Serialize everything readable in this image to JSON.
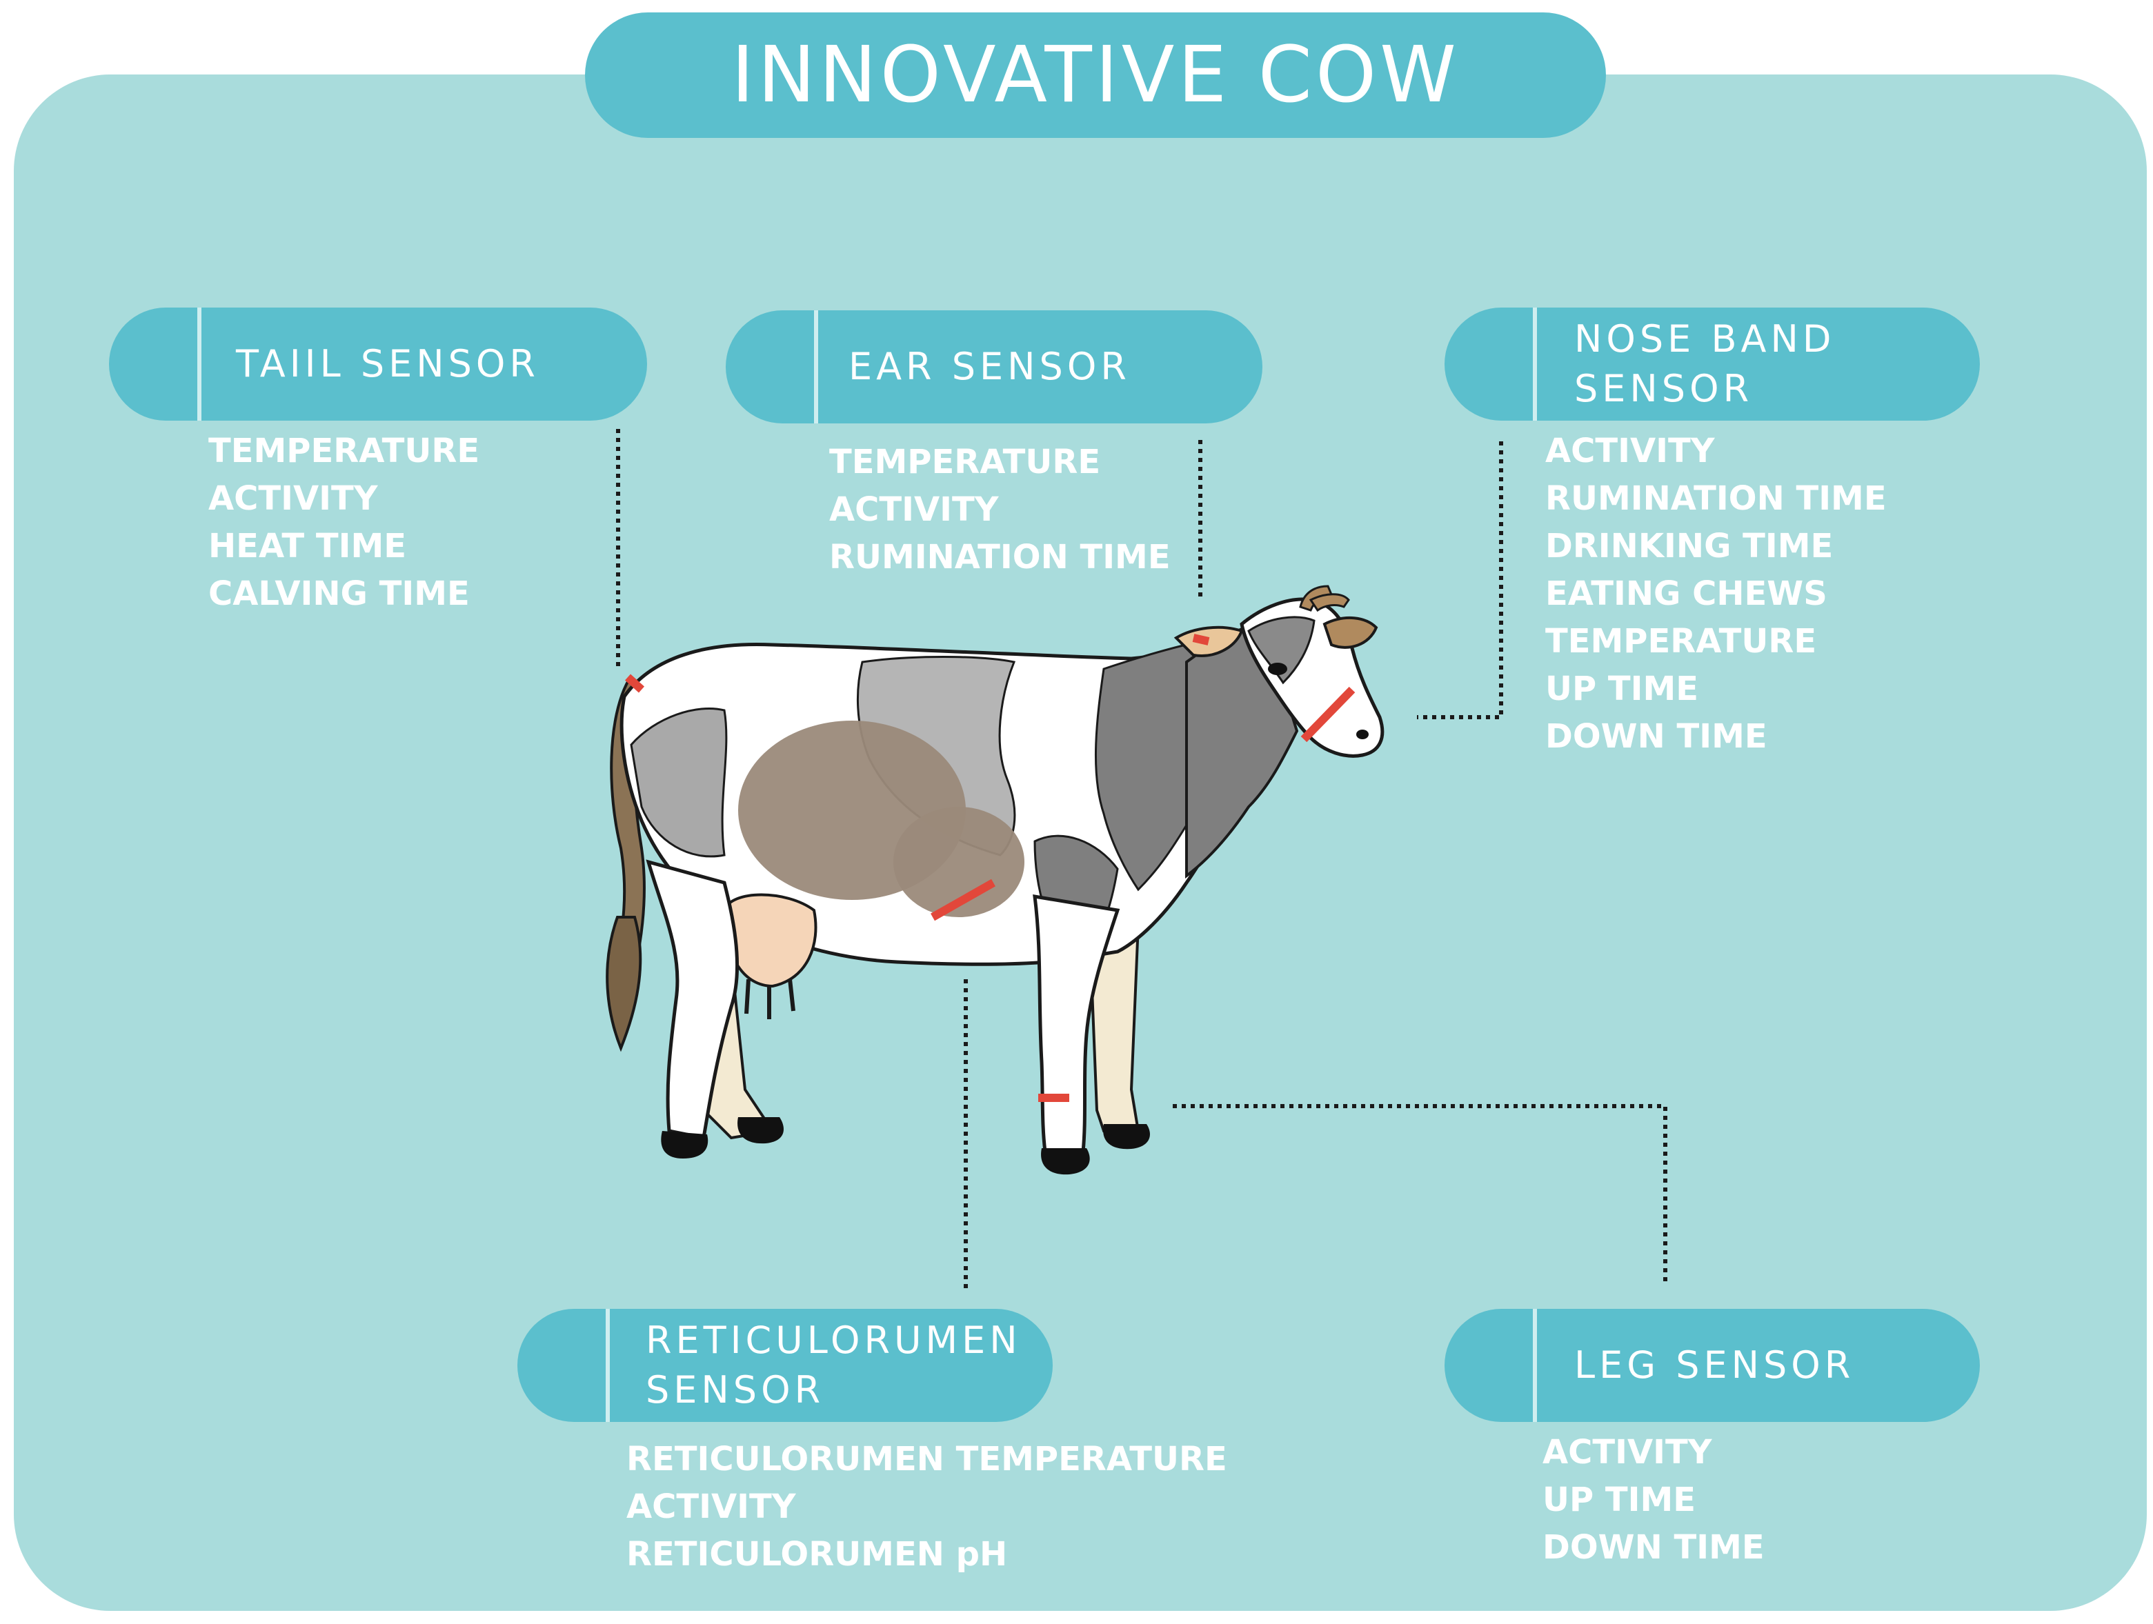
{
  "title": "INNOVATIVE COW",
  "colors": {
    "background": "#a9dcdc",
    "pill": "#5bbfcd",
    "text": "#ffffff",
    "sensor_marker": "#e2473a",
    "connector": "#1a1a1a"
  },
  "sensors": {
    "tail": {
      "label_lines": [
        "TAIIL SENSOR"
      ],
      "items": [
        "TEMPERATURE",
        "ACTIVITY",
        "HEAT TIME",
        "CALVING TIME"
      ]
    },
    "ear": {
      "label_lines": [
        "EAR SENSOR"
      ],
      "items": [
        "TEMPERATURE",
        "ACTIVITY",
        "RUMINATION TIME"
      ]
    },
    "nose": {
      "label_lines": [
        "NOSE BAND",
        "SENSOR"
      ],
      "items": [
        "ACTIVITY",
        "RUMINATION TIME",
        "DRINKING TIME",
        "EATING CHEWS",
        "TEMPERATURE",
        "UP TIME",
        "DOWN TIME"
      ]
    },
    "reticulorumen": {
      "label_lines": [
        "RETICULORUMEN",
        "SENSOR"
      ],
      "items": [
        "RETICULORUMEN TEMPERATURE",
        "ACTIVITY",
        "RETICULORUMEN pH"
      ]
    },
    "leg": {
      "label_lines": [
        "LEG SENSOR"
      ],
      "items": [
        "ACTIVITY",
        "UP TIME",
        "DOWN TIME"
      ]
    }
  }
}
